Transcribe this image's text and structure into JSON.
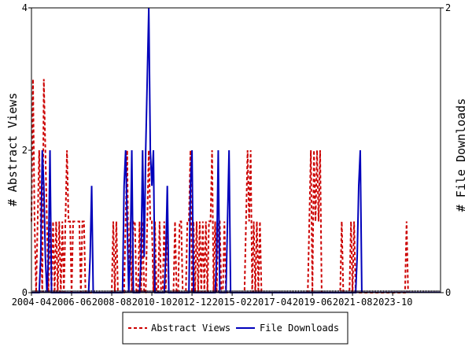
{
  "chart_data": {
    "type": "line",
    "y_left_label": "# Abstract Views",
    "y_right_label": "# File Downloads",
    "y_left_range": [
      0,
      4
    ],
    "y_right_range": [
      0,
      2
    ],
    "y_left_ticks": [
      "0",
      "2",
      "4"
    ],
    "y_right_ticks": [
      "0",
      "2"
    ],
    "x_range": [
      "2004-04",
      "2026-05"
    ],
    "x_tick_labels": [
      "2004-04",
      "2006-06",
      "2008-08",
      "2010-10",
      "2012-12",
      "2015-02",
      "2017-04",
      "2019-06",
      "2021-08",
      "2023-10"
    ],
    "legend_position": "bottom-center",
    "series": [
      {
        "name": "Abstract Views",
        "axis": "left",
        "color": "#cc0000",
        "style": "dashed",
        "points": [
          [
            "2004-04",
            1
          ],
          [
            "2004-05",
            3
          ],
          [
            "2004-06",
            1
          ],
          [
            "2004-07",
            0
          ],
          [
            "2004-08",
            1
          ],
          [
            "2004-09",
            2
          ],
          [
            "2004-10",
            1
          ],
          [
            "2004-11",
            0
          ],
          [
            "2004-12",
            3
          ],
          [
            "2005-01",
            2
          ],
          [
            "2005-02",
            1
          ],
          [
            "2005-03",
            0
          ],
          [
            "2005-04",
            1
          ],
          [
            "2005-05",
            0
          ],
          [
            "2005-06",
            1
          ],
          [
            "2005-07",
            0
          ],
          [
            "2005-08",
            1
          ],
          [
            "2005-09",
            0
          ],
          [
            "2005-10",
            1
          ],
          [
            "2005-11",
            0
          ],
          [
            "2005-12",
            1
          ],
          [
            "2006-01",
            0
          ],
          [
            "2006-02",
            1
          ],
          [
            "2006-03",
            2
          ],
          [
            "2006-04",
            1
          ],
          [
            "2006-05",
            1
          ],
          [
            "2006-06",
            0
          ],
          [
            "2006-07",
            1
          ],
          [
            "2006-08",
            1
          ],
          [
            "2006-09",
            1
          ],
          [
            "2006-10",
            1
          ],
          [
            "2006-11",
            1
          ],
          [
            "2006-12",
            0
          ],
          [
            "2007-01",
            1
          ],
          [
            "2007-02",
            1
          ],
          [
            "2007-03",
            0
          ],
          [
            "2007-04",
            0
          ],
          [
            "2007-05",
            0
          ],
          [
            "2007-06",
            0
          ],
          [
            "2007-07",
            0
          ],
          [
            "2007-08",
            0
          ],
          [
            "2007-09",
            0
          ],
          [
            "2007-10",
            0
          ],
          [
            "2007-11",
            0
          ],
          [
            "2007-12",
            0
          ],
          [
            "2008-01",
            0
          ],
          [
            "2008-02",
            0
          ],
          [
            "2008-03",
            0
          ],
          [
            "2008-04",
            0
          ],
          [
            "2008-05",
            0
          ],
          [
            "2008-06",
            0
          ],
          [
            "2008-07",
            0
          ],
          [
            "2008-08",
            0
          ],
          [
            "2008-09",
            1
          ],
          [
            "2008-10",
            0
          ],
          [
            "2008-11",
            1
          ],
          [
            "2008-12",
            0
          ],
          [
            "2009-01",
            0
          ],
          [
            "2009-02",
            0
          ],
          [
            "2009-03",
            0
          ],
          [
            "2009-04",
            0
          ],
          [
            "2009-05",
            1
          ],
          [
            "2009-06",
            2
          ],
          [
            "2009-07",
            0
          ],
          [
            "2009-08",
            1
          ],
          [
            "2009-09",
            0
          ],
          [
            "2009-10",
            1
          ],
          [
            "2009-11",
            1
          ],
          [
            "2009-12",
            0
          ],
          [
            "2010-01",
            0
          ],
          [
            "2010-02",
            1
          ],
          [
            "2010-03",
            0
          ],
          [
            "2010-04",
            1
          ],
          [
            "2010-05",
            0
          ],
          [
            "2010-06",
            0
          ],
          [
            "2010-07",
            1
          ],
          [
            "2010-08",
            2
          ],
          [
            "2010-09",
            1
          ],
          [
            "2010-10",
            1
          ],
          [
            "2010-11",
            0
          ],
          [
            "2010-12",
            1
          ],
          [
            "2011-01",
            0
          ],
          [
            "2011-02",
            0
          ],
          [
            "2011-03",
            1
          ],
          [
            "2011-04",
            0
          ],
          [
            "2011-05",
            0
          ],
          [
            "2011-06",
            1
          ],
          [
            "2011-07",
            0
          ],
          [
            "2011-08",
            1
          ],
          [
            "2011-09",
            0
          ],
          [
            "2011-10",
            0
          ],
          [
            "2011-11",
            0
          ],
          [
            "2011-12",
            0
          ],
          [
            "2012-01",
            1
          ],
          [
            "2012-02",
            0
          ],
          [
            "2012-03",
            0
          ],
          [
            "2012-04",
            1
          ],
          [
            "2012-05",
            1
          ],
          [
            "2012-06",
            0
          ],
          [
            "2012-07",
            0
          ],
          [
            "2012-08",
            0
          ],
          [
            "2012-09",
            1
          ],
          [
            "2012-10",
            1
          ],
          [
            "2012-11",
            2
          ],
          [
            "2012-12",
            0
          ],
          [
            "2013-01",
            1
          ],
          [
            "2013-02",
            0
          ],
          [
            "2013-03",
            1
          ],
          [
            "2013-04",
            0
          ],
          [
            "2013-05",
            1
          ],
          [
            "2013-06",
            0
          ],
          [
            "2013-07",
            1
          ],
          [
            "2013-08",
            0
          ],
          [
            "2013-09",
            1
          ],
          [
            "2013-10",
            0
          ],
          [
            "2013-11",
            1
          ],
          [
            "2013-12",
            1
          ],
          [
            "2014-01",
            2
          ],
          [
            "2014-02",
            0
          ],
          [
            "2014-03",
            1
          ],
          [
            "2014-04",
            0
          ],
          [
            "2014-05",
            1
          ],
          [
            "2014-06",
            1
          ],
          [
            "2014-07",
            0
          ],
          [
            "2014-08",
            0
          ],
          [
            "2014-09",
            1
          ],
          [
            "2014-10",
            0
          ],
          [
            "2014-11",
            0
          ],
          [
            "2014-12",
            0
          ],
          [
            "2015-01",
            0
          ],
          [
            "2015-02",
            0
          ],
          [
            "2015-03",
            0
          ],
          [
            "2015-04",
            0
          ],
          [
            "2015-05",
            0
          ],
          [
            "2015-06",
            0
          ],
          [
            "2015-07",
            0
          ],
          [
            "2015-08",
            0
          ],
          [
            "2015-09",
            0
          ],
          [
            "2015-10",
            0
          ],
          [
            "2015-11",
            1
          ],
          [
            "2015-12",
            2
          ],
          [
            "2016-01",
            1
          ],
          [
            "2016-02",
            2
          ],
          [
            "2016-03",
            0
          ],
          [
            "2016-04",
            1
          ],
          [
            "2016-05",
            0
          ],
          [
            "2016-06",
            1
          ],
          [
            "2016-07",
            0
          ],
          [
            "2016-08",
            1
          ],
          [
            "2016-09",
            0
          ],
          [
            "2016-10",
            0
          ],
          [
            "2016-11",
            0
          ],
          [
            "2016-12",
            0
          ],
          [
            "2019-03",
            0
          ],
          [
            "2019-04",
            1
          ],
          [
            "2019-05",
            2
          ],
          [
            "2019-06",
            0
          ],
          [
            "2019-07",
            2
          ],
          [
            "2019-08",
            1
          ],
          [
            "2019-09",
            2
          ],
          [
            "2019-10",
            1
          ],
          [
            "2019-11",
            2
          ],
          [
            "2019-12",
            0
          ],
          [
            "2020-01",
            0
          ],
          [
            "2020-02",
            0
          ],
          [
            "2020-03",
            0
          ],
          [
            "2020-04",
            0
          ],
          [
            "2020-05",
            0
          ],
          [
            "2020-06",
            0
          ],
          [
            "2020-07",
            0
          ],
          [
            "2020-08",
            0
          ],
          [
            "2020-09",
            0
          ],
          [
            "2020-10",
            0
          ],
          [
            "2020-11",
            0
          ],
          [
            "2020-12",
            0
          ],
          [
            "2021-01",
            1
          ],
          [
            "2021-02",
            0
          ],
          [
            "2021-03",
            0
          ],
          [
            "2021-04",
            0
          ],
          [
            "2021-05",
            0
          ],
          [
            "2021-06",
            0
          ],
          [
            "2021-07",
            1
          ],
          [
            "2021-08",
            0
          ],
          [
            "2021-09",
            1
          ],
          [
            "2021-10",
            0
          ],
          [
            "2021-11",
            0
          ],
          [
            "2021-12",
            0
          ],
          [
            "2024-06",
            0
          ],
          [
            "2024-07",
            1
          ],
          [
            "2024-08",
            0
          ]
        ]
      },
      {
        "name": "File Downloads",
        "axis": "right",
        "color": "#0000bb",
        "style": "solid",
        "points": [
          [
            "2004-04",
            0
          ],
          [
            "2004-05",
            0
          ],
          [
            "2004-06",
            0
          ],
          [
            "2004-07",
            0
          ],
          [
            "2004-08",
            0
          ],
          [
            "2004-09",
            0
          ],
          [
            "2004-10",
            0.25
          ],
          [
            "2004-11",
            1
          ],
          [
            "2004-12",
            0.75
          ],
          [
            "2005-01",
            0.25
          ],
          [
            "2005-02",
            0
          ],
          [
            "2005-03",
            0.25
          ],
          [
            "2005-04",
            1
          ],
          [
            "2005-05",
            0
          ],
          [
            "2007-05",
            0
          ],
          [
            "2007-06",
            0.25
          ],
          [
            "2007-07",
            0.75
          ],
          [
            "2007-08",
            0
          ],
          [
            "2009-03",
            0
          ],
          [
            "2009-04",
            0.75
          ],
          [
            "2009-05",
            1
          ],
          [
            "2009-06",
            0.5
          ],
          [
            "2009-07",
            0
          ],
          [
            "2009-08",
            0.25
          ],
          [
            "2009-09",
            1
          ],
          [
            "2009-10",
            0
          ],
          [
            "2009-11",
            0
          ],
          [
            "2010-02",
            0
          ],
          [
            "2010-03",
            0.25
          ],
          [
            "2010-04",
            1
          ],
          [
            "2010-05",
            0.25
          ],
          [
            "2010-06",
            1
          ],
          [
            "2010-07",
            1.5
          ],
          [
            "2010-08",
            2
          ],
          [
            "2010-09",
            1
          ],
          [
            "2010-10",
            0.75
          ],
          [
            "2010-11",
            1
          ],
          [
            "2010-12",
            0
          ],
          [
            "2011-01",
            0
          ],
          [
            "2011-06",
            0
          ],
          [
            "2011-07",
            0.25
          ],
          [
            "2011-08",
            0.75
          ],
          [
            "2011-09",
            0
          ],
          [
            "2012-10",
            0
          ],
          [
            "2012-11",
            0.75
          ],
          [
            "2012-12",
            1
          ],
          [
            "2013-01",
            0
          ],
          [
            "2014-03",
            0
          ],
          [
            "2014-04",
            0.25
          ],
          [
            "2014-05",
            1
          ],
          [
            "2014-06",
            0
          ],
          [
            "2014-10",
            0
          ],
          [
            "2014-11",
            0.5
          ],
          [
            "2014-12",
            1
          ],
          [
            "2015-01",
            0
          ],
          [
            "2021-10",
            0
          ],
          [
            "2021-11",
            0.25
          ],
          [
            "2021-12",
            0.75
          ],
          [
            "2022-01",
            1
          ],
          [
            "2022-02",
            0
          ]
        ]
      }
    ]
  }
}
